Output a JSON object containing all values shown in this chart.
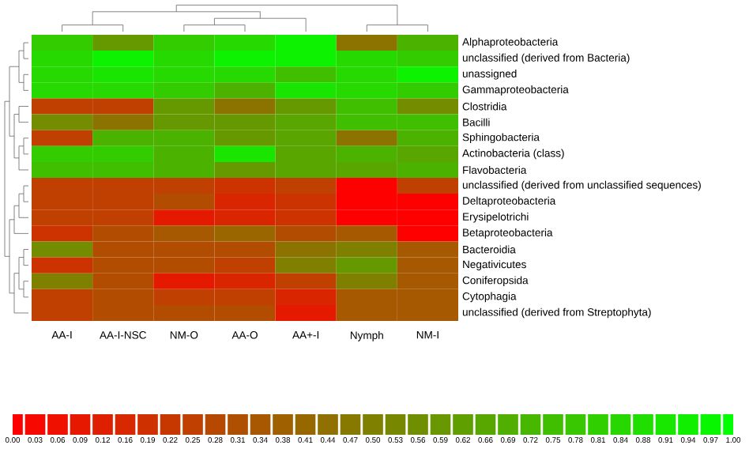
{
  "chart_data": {
    "type": "heatmap",
    "categories": [
      "AA-I",
      "AA-I-NSC",
      "NM-O",
      "AA-O",
      "AA+-I",
      "Nymph",
      "NM-I"
    ],
    "y_categories": [
      "Alphaproteobacteria",
      "unclassified (derived from Bacteria)",
      "unassigned",
      "Gammaproteobacteria",
      "Clostridia",
      "Bacilli",
      "Sphingobacteria",
      "Actinobacteria (class)",
      "Flavobacteria",
      "unclassified (derived from unclassified sequences)",
      "Deltaproteobacteria",
      "Erysipelotrichi",
      "Betaproteobacteria",
      "Bacteroidia",
      "Negativicutes",
      "Coniferopsida",
      "Cytophagia",
      "unclassified (derived from Streptophyta)"
    ],
    "cells": [
      [
        0.8,
        0.6,
        0.8,
        0.85,
        0.95,
        0.45,
        0.7
      ],
      [
        0.85,
        0.95,
        0.85,
        0.95,
        0.95,
        0.85,
        0.8
      ],
      [
        0.85,
        0.9,
        0.85,
        0.85,
        0.75,
        0.85,
        0.95
      ],
      [
        0.85,
        0.85,
        0.8,
        0.7,
        0.9,
        0.85,
        0.8
      ],
      [
        0.25,
        0.25,
        0.6,
        0.45,
        0.6,
        0.75,
        0.55
      ],
      [
        0.55,
        0.45,
        0.6,
        0.6,
        0.65,
        0.75,
        0.75
      ],
      [
        0.25,
        0.7,
        0.7,
        0.6,
        0.65,
        0.45,
        0.7
      ],
      [
        0.8,
        0.8,
        0.7,
        0.9,
        0.65,
        0.7,
        0.65
      ],
      [
        0.75,
        0.75,
        0.7,
        0.6,
        0.65,
        0.65,
        0.7
      ],
      [
        0.25,
        0.25,
        0.25,
        0.2,
        0.25,
        0.0,
        0.25
      ],
      [
        0.25,
        0.25,
        0.3,
        0.15,
        0.2,
        0.0,
        0.0
      ],
      [
        0.25,
        0.25,
        0.1,
        0.15,
        0.2,
        0.0,
        0.0
      ],
      [
        0.2,
        0.3,
        0.35,
        0.4,
        0.3,
        0.35,
        0.0
      ],
      [
        0.55,
        0.3,
        0.3,
        0.3,
        0.45,
        0.5,
        0.35
      ],
      [
        0.2,
        0.3,
        0.3,
        0.25,
        0.5,
        0.6,
        0.35
      ],
      [
        0.5,
        0.3,
        0.1,
        0.15,
        0.25,
        0.5,
        0.35
      ],
      [
        0.25,
        0.3,
        0.25,
        0.25,
        0.15,
        0.35,
        0.35
      ],
      [
        0.25,
        0.3,
        0.3,
        0.3,
        0.1,
        0.35,
        0.35
      ]
    ],
    "clim": [
      0,
      1
    ],
    "cticks": [
      {
        "value": 0,
        "label": "0.00"
      },
      {
        "value": 0.03125,
        "label": "0.03"
      },
      {
        "value": 0.0625,
        "label": "0.06"
      },
      {
        "value": 0.09375,
        "label": "0.09"
      },
      {
        "value": 0.125,
        "label": "0.12"
      },
      {
        "value": 0.15625,
        "label": "0.16"
      },
      {
        "value": 0.1875,
        "label": "0.19"
      },
      {
        "value": 0.21875,
        "label": "0.22"
      },
      {
        "value": 0.25,
        "label": "0.25"
      },
      {
        "value": 0.28125,
        "label": "0.28"
      },
      {
        "value": 0.3125,
        "label": "0.31"
      },
      {
        "value": 0.34375,
        "label": "0.34"
      },
      {
        "value": 0.375,
        "label": "0.38"
      },
      {
        "value": 0.40625,
        "label": "0.41"
      },
      {
        "value": 0.4375,
        "label": "0.44"
      },
      {
        "value": 0.46875,
        "label": "0.47"
      },
      {
        "value": 0.5,
        "label": "0.50"
      },
      {
        "value": 0.53125,
        "label": "0.53"
      },
      {
        "value": 0.5625,
        "label": "0.56"
      },
      {
        "value": 0.59375,
        "label": "0.59"
      },
      {
        "value": 0.625,
        "label": "0.62"
      },
      {
        "value": 0.65625,
        "label": "0.66"
      },
      {
        "value": 0.6875,
        "label": "0.69"
      },
      {
        "value": 0.71875,
        "label": "0.72"
      },
      {
        "value": 0.75,
        "label": "0.75"
      },
      {
        "value": 0.78125,
        "label": "0.78"
      },
      {
        "value": 0.8125,
        "label": "0.81"
      },
      {
        "value": 0.84375,
        "label": "0.84"
      },
      {
        "value": 0.875,
        "label": "0.88"
      },
      {
        "value": 0.90625,
        "label": "0.91"
      },
      {
        "value": 0.9375,
        "label": "0.94"
      },
      {
        "value": 0.96875,
        "label": "0.97"
      },
      {
        "value": 1,
        "label": "1.00"
      }
    ]
  }
}
